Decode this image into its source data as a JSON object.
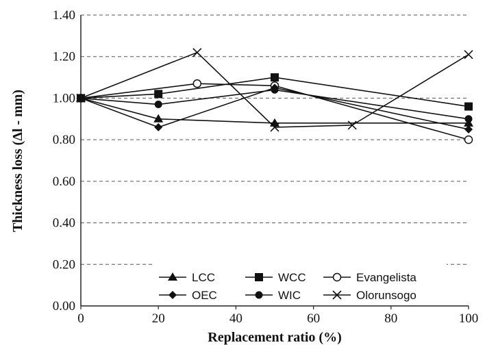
{
  "chart_data": {
    "type": "line",
    "title": "",
    "xlabel": "Replacement ratio (%)",
    "ylabel": "Thickness loss (Δl - mm)",
    "xlim": [
      0,
      100
    ],
    "ylim": [
      0,
      1.4
    ],
    "x_ticks": [
      0,
      20,
      40,
      60,
      80,
      100
    ],
    "y_ticks": [
      "0.00",
      "0.20",
      "0.40",
      "0.60",
      "0.80",
      "1.00",
      "1.20",
      "1.40"
    ],
    "grid": "horizontal dashed",
    "legend_placement": "bottom-center",
    "series": [
      {
        "name": "LCC",
        "marker": "triangle",
        "x": [
          0,
          20,
          50,
          100
        ],
        "y": [
          1.0,
          0.9,
          0.88,
          0.88
        ]
      },
      {
        "name": "WCC",
        "marker": "square",
        "x": [
          0,
          20,
          50,
          100
        ],
        "y": [
          1.0,
          1.02,
          1.1,
          0.96
        ]
      },
      {
        "name": "Evangelista",
        "marker": "open-circle",
        "x": [
          0,
          30,
          50,
          100
        ],
        "y": [
          1.0,
          1.07,
          1.06,
          0.8
        ]
      },
      {
        "name": "OEC",
        "marker": "diamond",
        "x": [
          0,
          20,
          50,
          100
        ],
        "y": [
          1.0,
          0.86,
          1.05,
          0.85
        ]
      },
      {
        "name": "WIC",
        "marker": "circle",
        "x": [
          0,
          20,
          50,
          100
        ],
        "y": [
          1.0,
          0.97,
          1.04,
          0.9
        ]
      },
      {
        "name": "Olorunsogo",
        "marker": "x",
        "x": [
          0,
          30,
          50,
          70,
          100
        ],
        "y": [
          1.0,
          1.22,
          0.86,
          0.87,
          1.21
        ]
      }
    ]
  }
}
